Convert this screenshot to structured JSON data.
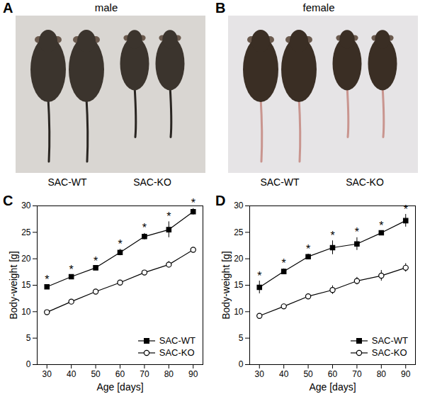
{
  "panels": [
    {
      "label": "A",
      "title": "male",
      "groups": [
        "SAC-WT",
        "SAC-KO"
      ]
    },
    {
      "label": "B",
      "title": "female",
      "groups": [
        "SAC-WT",
        "SAC-KO"
      ]
    }
  ],
  "chart_data": [
    {
      "panel": "C",
      "type": "line",
      "xlabel": "Age [days]",
      "ylabel": "Body-weight [g]",
      "x": [
        30,
        40,
        50,
        60,
        70,
        80,
        90
      ],
      "series": [
        {
          "name": "SAC-WT",
          "color": "#000000",
          "marker": "square",
          "values": [
            14.7,
            16.6,
            18.3,
            21.2,
            24.2,
            25.5,
            28.9
          ],
          "errors": [
            0.4,
            0.3,
            0.3,
            0.6,
            0.6,
            1.5,
            0.6
          ]
        },
        {
          "name": "SAC-KO",
          "color": "#000000",
          "marker": "open-circle",
          "values": [
            9.9,
            11.9,
            13.8,
            15.5,
            17.4,
            18.9,
            21.7
          ],
          "errors": [
            0.2,
            0.3,
            0.3,
            0.3,
            0.4,
            0.6,
            0.4
          ]
        }
      ],
      "annotations": [
        {
          "x": 30,
          "text": "*",
          "series": "SAC-WT"
        },
        {
          "x": 40,
          "text": "*",
          "series": "SAC-WT"
        },
        {
          "x": 50,
          "text": "*",
          "series": "SAC-WT"
        },
        {
          "x": 60,
          "text": "*",
          "series": "SAC-WT"
        },
        {
          "x": 70,
          "text": "*",
          "series": "SAC-WT"
        },
        {
          "x": 80,
          "text": "*",
          "series": "SAC-WT"
        },
        {
          "x": 90,
          "text": "*",
          "series": "SAC-WT"
        }
      ],
      "xlim": [
        26,
        94
      ],
      "xticks": [
        30,
        40,
        50,
        60,
        70,
        80,
        90
      ],
      "ylim": [
        0,
        30
      ],
      "yticks": [
        0,
        5,
        10,
        15,
        20,
        25,
        30
      ],
      "legend": "lower right"
    },
    {
      "panel": "D",
      "type": "line",
      "xlabel": "Age [days]",
      "ylabel": "Body-weight [g]",
      "x": [
        30,
        40,
        50,
        60,
        70,
        80,
        90
      ],
      "series": [
        {
          "name": "SAC-WT",
          "color": "#000000",
          "marker": "square",
          "values": [
            14.6,
            17.6,
            20.4,
            22.1,
            22.8,
            24.9,
            27.2
          ],
          "errors": [
            1.2,
            0.5,
            0.5,
            1.3,
            1.2,
            0.3,
            1.2
          ]
        },
        {
          "name": "SAC-KO",
          "color": "#000000",
          "marker": "open-circle",
          "values": [
            9.2,
            11.0,
            12.9,
            14.1,
            15.8,
            16.8,
            18.3
          ],
          "errors": [
            0.4,
            0.4,
            0.2,
            0.8,
            0.7,
            1.0,
            0.8
          ]
        }
      ],
      "annotations": [
        {
          "x": 30,
          "text": "*",
          "series": "SAC-WT"
        },
        {
          "x": 40,
          "text": "*",
          "series": "SAC-WT"
        },
        {
          "x": 50,
          "text": "*",
          "series": "SAC-WT"
        },
        {
          "x": 60,
          "text": "*",
          "series": "SAC-WT"
        },
        {
          "x": 70,
          "text": "*",
          "series": "SAC-WT"
        },
        {
          "x": 80,
          "text": "*",
          "series": "SAC-WT"
        },
        {
          "x": 90,
          "text": "*",
          "series": "SAC-WT"
        }
      ],
      "xlim": [
        26,
        94
      ],
      "xticks": [
        30,
        40,
        50,
        60,
        70,
        80,
        90
      ],
      "ylim": [
        0,
        30
      ],
      "yticks": [
        0,
        5,
        10,
        15,
        20,
        25,
        30
      ],
      "legend": "lower right"
    }
  ]
}
